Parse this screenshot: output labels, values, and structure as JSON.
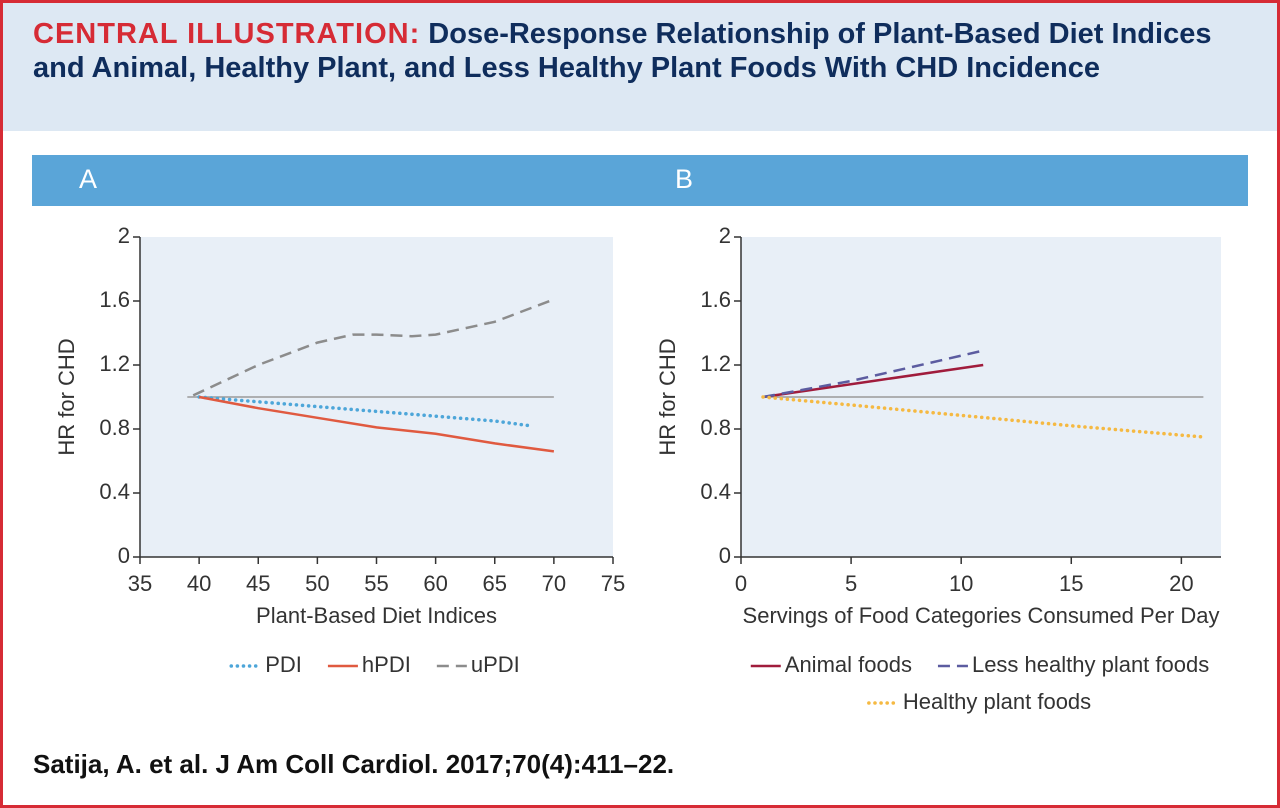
{
  "header": {
    "label": "CENTRAL ILLUSTRATION:",
    "title": "Dose-Response Relationship of Plant-Based Diet Indices and Animal, Healthy Plant, and Less Healthy Plant Foods With CHD Incidence"
  },
  "chart_data": [
    {
      "type": "line",
      "panel": "A",
      "x_label": "Plant-Based Diet Indices",
      "y_label": "HR for CHD",
      "xlim": [
        35,
        75
      ],
      "xticks": [
        35,
        40,
        45,
        50,
        55,
        60,
        65,
        70,
        75
      ],
      "ylim": [
        0,
        2
      ],
      "yticks": [
        0,
        0.4,
        0.8,
        1.2,
        1.6,
        2
      ],
      "reference_line": {
        "value": 1,
        "xlim": [
          39,
          70
        ],
        "color": "#9a9a9a"
      },
      "series": [
        {
          "name": "PDI",
          "color": "#4da6d9",
          "dash": "dotted",
          "x": [
            40,
            45,
            50,
            55,
            60,
            65,
            68
          ],
          "values": [
            1.0,
            0.97,
            0.94,
            0.91,
            0.88,
            0.85,
            0.82
          ]
        },
        {
          "name": "hPDI",
          "color": "#e05a40",
          "dash": "solid",
          "x": [
            40,
            45,
            50,
            55,
            60,
            65,
            70
          ],
          "values": [
            1.0,
            0.93,
            0.87,
            0.81,
            0.77,
            0.71,
            0.66
          ]
        },
        {
          "name": "uPDI",
          "color": "#8c8c8c",
          "dash": "dashed",
          "x": [
            39.5,
            45,
            50,
            53,
            55,
            58,
            60,
            65,
            70
          ],
          "values": [
            1.01,
            1.2,
            1.34,
            1.39,
            1.39,
            1.38,
            1.39,
            1.47,
            1.61
          ]
        }
      ]
    },
    {
      "type": "line",
      "panel": "B",
      "x_label": "Servings of Food Categories Consumed Per Day",
      "y_label": "HR for CHD",
      "xlim": [
        0,
        21.8
      ],
      "xticks": [
        0,
        5,
        10,
        15,
        20
      ],
      "ylim": [
        0,
        2
      ],
      "yticks": [
        0,
        0.4,
        0.8,
        1.2,
        1.6,
        2
      ],
      "reference_line": {
        "value": 1,
        "xlim": [
          1,
          21
        ],
        "color": "#9a9a9a"
      },
      "series": [
        {
          "name": "Animal foods",
          "color": "#a01c3c",
          "dash": "solid",
          "x": [
            1,
            11
          ],
          "values": [
            1.0,
            1.2
          ]
        },
        {
          "name": "Less healthy plant foods",
          "color": "#5c5ca0",
          "dash": "dashed",
          "x": [
            1,
            5,
            11
          ],
          "values": [
            1.0,
            1.1,
            1.29
          ]
        },
        {
          "name": "Healthy plant foods",
          "color": "#f5b942",
          "dash": "dotted",
          "x": [
            1,
            5,
            10,
            15,
            21
          ],
          "values": [
            1.0,
            0.95,
            0.885,
            0.82,
            0.75
          ]
        }
      ]
    }
  ],
  "citation": "Satija, A. et al. J Am Coll Cardiol. 2017;70(4):411–22."
}
